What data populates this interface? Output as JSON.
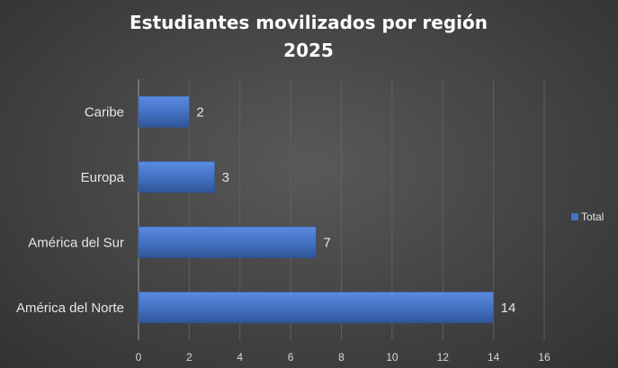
{
  "chart_data": {
    "type": "bar",
    "orientation": "horizontal",
    "title": "Estudiantes movilizados por región 2025",
    "title_lines": [
      "Estudiantes movilizados por región",
      "2025"
    ],
    "categories": [
      "América del Norte",
      "América del Sur",
      "Europa",
      "Caribe"
    ],
    "series": [
      {
        "name": "Total",
        "values": [
          14,
          7,
          3,
          2
        ]
      }
    ],
    "xlim": [
      0,
      16
    ],
    "x_ticks": [
      0,
      2,
      4,
      6,
      8,
      10,
      12,
      14,
      16
    ],
    "grid": true,
    "legend": "right",
    "colors": {
      "bar": "#4472c4",
      "bar_light": "#5b8be0",
      "bar_dark": "#2f5597",
      "background": "#404040",
      "gridline": "#5f5f5f",
      "text": "#e6e6e6"
    }
  }
}
